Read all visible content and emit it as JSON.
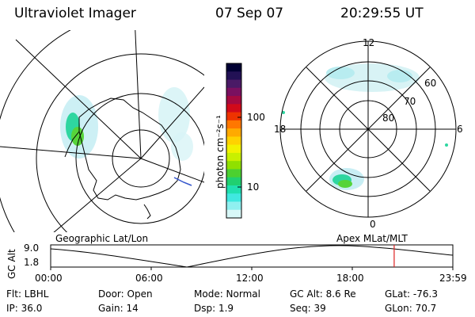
{
  "header": {
    "title": "Ultraviolet Imager",
    "date": "07 Sep 07",
    "time": "20:29:55 UT"
  },
  "left_panel": {
    "label": "Geographic Lat/Lon"
  },
  "right_panel": {
    "label": "Apex MLat/MLT",
    "mlt_labels": {
      "top": "12",
      "left": "18",
      "right": "6",
      "bottom": "0"
    },
    "lat_labels": [
      "60",
      "70",
      "80"
    ]
  },
  "colorbar": {
    "unit_label": "photon cm⁻²s⁻¹",
    "tick_labels": [
      "100",
      "10"
    ],
    "colors": [
      "#000033",
      "#221155",
      "#4a1a66",
      "#7a1060",
      "#a50a40",
      "#d10a1a",
      "#ee3300",
      "#ff7700",
      "#ffaa00",
      "#ffd200",
      "#f2f200",
      "#c8f000",
      "#90e000",
      "#4cd030",
      "#20d070",
      "#20e0b0",
      "#40e8e0",
      "#90f0f0",
      "#d8f8f8"
    ]
  },
  "altitude_plot": {
    "ylabel": "GC Alt",
    "y_ticks": [
      "9.0",
      "1.8"
    ],
    "x_ticks": [
      "00:00",
      "06:00",
      "12:00",
      "18:00",
      "23:59"
    ],
    "marker_time_hours": 20.5
  },
  "info": {
    "flt": "Flt: LBHL",
    "ip": "IP: 36.0",
    "door": "Door: Open",
    "gain": "Gain: 14",
    "mode": "Mode: Normal",
    "dsp": "Dsp:    1.9",
    "gc_alt": "GC Alt: 8.6 Re",
    "seq": "Seq: 39",
    "glat": "GLat: -76.3",
    "glon": "GLon:  70.7"
  }
}
